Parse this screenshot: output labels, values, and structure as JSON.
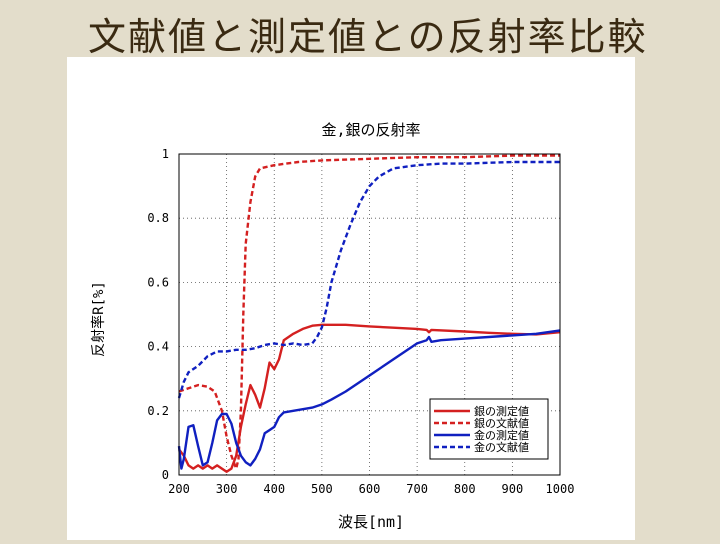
{
  "slide": {
    "title": "文献値と測定値との反射率比較"
  },
  "chart_data": {
    "type": "line",
    "title": "金,銀の反射率",
    "xlabel": "波長[nm]",
    "ylabel": "反射率R[%]",
    "xlim": [
      200,
      1000
    ],
    "ylim": [
      0,
      1
    ],
    "xticks": [
      200,
      300,
      400,
      500,
      600,
      700,
      800,
      900,
      1000
    ],
    "yticks": [
      0,
      0.2,
      0.4,
      0.6,
      0.8,
      1
    ],
    "ytick_labels": [
      "0",
      "0.2",
      "0.4",
      "0.6",
      "0.8",
      "1"
    ],
    "grid": true,
    "legend_position": "bottom-right",
    "series": [
      {
        "name": "銀の測定値",
        "color": "#d42020",
        "style": "solid",
        "points": [
          [
            200,
            0.08
          ],
          [
            210,
            0.06
          ],
          [
            220,
            0.03
          ],
          [
            230,
            0.02
          ],
          [
            240,
            0.03
          ],
          [
            250,
            0.02
          ],
          [
            260,
            0.03
          ],
          [
            270,
            0.02
          ],
          [
            280,
            0.03
          ],
          [
            290,
            0.02
          ],
          [
            300,
            0.01
          ],
          [
            310,
            0.02
          ],
          [
            320,
            0.06
          ],
          [
            330,
            0.15
          ],
          [
            340,
            0.22
          ],
          [
            350,
            0.28
          ],
          [
            360,
            0.25
          ],
          [
            370,
            0.21
          ],
          [
            380,
            0.27
          ],
          [
            390,
            0.35
          ],
          [
            400,
            0.33
          ],
          [
            410,
            0.36
          ],
          [
            420,
            0.42
          ],
          [
            440,
            0.44
          ],
          [
            460,
            0.455
          ],
          [
            480,
            0.465
          ],
          [
            500,
            0.468
          ],
          [
            550,
            0.468
          ],
          [
            600,
            0.463
          ],
          [
            650,
            0.459
          ],
          [
            700,
            0.455
          ],
          [
            720,
            0.452
          ],
          [
            725,
            0.445
          ],
          [
            730,
            0.452
          ],
          [
            800,
            0.447
          ],
          [
            850,
            0.443
          ],
          [
            900,
            0.44
          ],
          [
            950,
            0.438
          ],
          [
            1000,
            0.445
          ]
        ]
      },
      {
        "name": "銀の文献値",
        "color": "#d42020",
        "style": "dashed",
        "points": [
          [
            200,
            0.26
          ],
          [
            220,
            0.27
          ],
          [
            240,
            0.28
          ],
          [
            260,
            0.275
          ],
          [
            275,
            0.26
          ],
          [
            290,
            0.2
          ],
          [
            300,
            0.12
          ],
          [
            310,
            0.06
          ],
          [
            320,
            0.02
          ],
          [
            325,
            0.05
          ],
          [
            330,
            0.2
          ],
          [
            335,
            0.5
          ],
          [
            340,
            0.72
          ],
          [
            350,
            0.85
          ],
          [
            360,
            0.93
          ],
          [
            370,
            0.955
          ],
          [
            400,
            0.965
          ],
          [
            450,
            0.975
          ],
          [
            500,
            0.98
          ],
          [
            600,
            0.985
          ],
          [
            700,
            0.99
          ],
          [
            800,
            0.99
          ],
          [
            900,
            0.995
          ],
          [
            1000,
            0.995
          ]
        ]
      },
      {
        "name": "金の測定値",
        "color": "#1020c0",
        "style": "solid",
        "points": [
          [
            200,
            0.09
          ],
          [
            205,
            0.02
          ],
          [
            210,
            0.05
          ],
          [
            220,
            0.15
          ],
          [
            230,
            0.155
          ],
          [
            240,
            0.09
          ],
          [
            250,
            0.03
          ],
          [
            260,
            0.04
          ],
          [
            270,
            0.1
          ],
          [
            280,
            0.17
          ],
          [
            290,
            0.19
          ],
          [
            300,
            0.19
          ],
          [
            310,
            0.16
          ],
          [
            320,
            0.1
          ],
          [
            330,
            0.06
          ],
          [
            340,
            0.04
          ],
          [
            350,
            0.03
          ],
          [
            360,
            0.05
          ],
          [
            370,
            0.08
          ],
          [
            380,
            0.13
          ],
          [
            390,
            0.14
          ],
          [
            400,
            0.15
          ],
          [
            410,
            0.18
          ],
          [
            420,
            0.195
          ],
          [
            440,
            0.2
          ],
          [
            460,
            0.205
          ],
          [
            480,
            0.21
          ],
          [
            500,
            0.22
          ],
          [
            520,
            0.235
          ],
          [
            550,
            0.26
          ],
          [
            600,
            0.31
          ],
          [
            650,
            0.36
          ],
          [
            700,
            0.41
          ],
          [
            720,
            0.42
          ],
          [
            725,
            0.43
          ],
          [
            730,
            0.415
          ],
          [
            750,
            0.42
          ],
          [
            800,
            0.425
          ],
          [
            850,
            0.43
          ],
          [
            900,
            0.435
          ],
          [
            950,
            0.44
          ],
          [
            1000,
            0.45
          ]
        ]
      },
      {
        "name": "金の文献値",
        "color": "#1020c0",
        "style": "dashed",
        "points": [
          [
            200,
            0.24
          ],
          [
            210,
            0.29
          ],
          [
            220,
            0.32
          ],
          [
            240,
            0.34
          ],
          [
            260,
            0.37
          ],
          [
            280,
            0.385
          ],
          [
            300,
            0.385
          ],
          [
            320,
            0.39
          ],
          [
            340,
            0.39
          ],
          [
            360,
            0.395
          ],
          [
            380,
            0.405
          ],
          [
            400,
            0.41
          ],
          [
            420,
            0.405
          ],
          [
            440,
            0.41
          ],
          [
            460,
            0.405
          ],
          [
            480,
            0.41
          ],
          [
            490,
            0.43
          ],
          [
            500,
            0.46
          ],
          [
            510,
            0.52
          ],
          [
            520,
            0.6
          ],
          [
            540,
            0.7
          ],
          [
            560,
            0.78
          ],
          [
            580,
            0.85
          ],
          [
            600,
            0.9
          ],
          [
            620,
            0.93
          ],
          [
            650,
            0.955
          ],
          [
            700,
            0.965
          ],
          [
            750,
            0.97
          ],
          [
            800,
            0.97
          ],
          [
            900,
            0.975
          ],
          [
            1000,
            0.975
          ]
        ]
      }
    ]
  }
}
